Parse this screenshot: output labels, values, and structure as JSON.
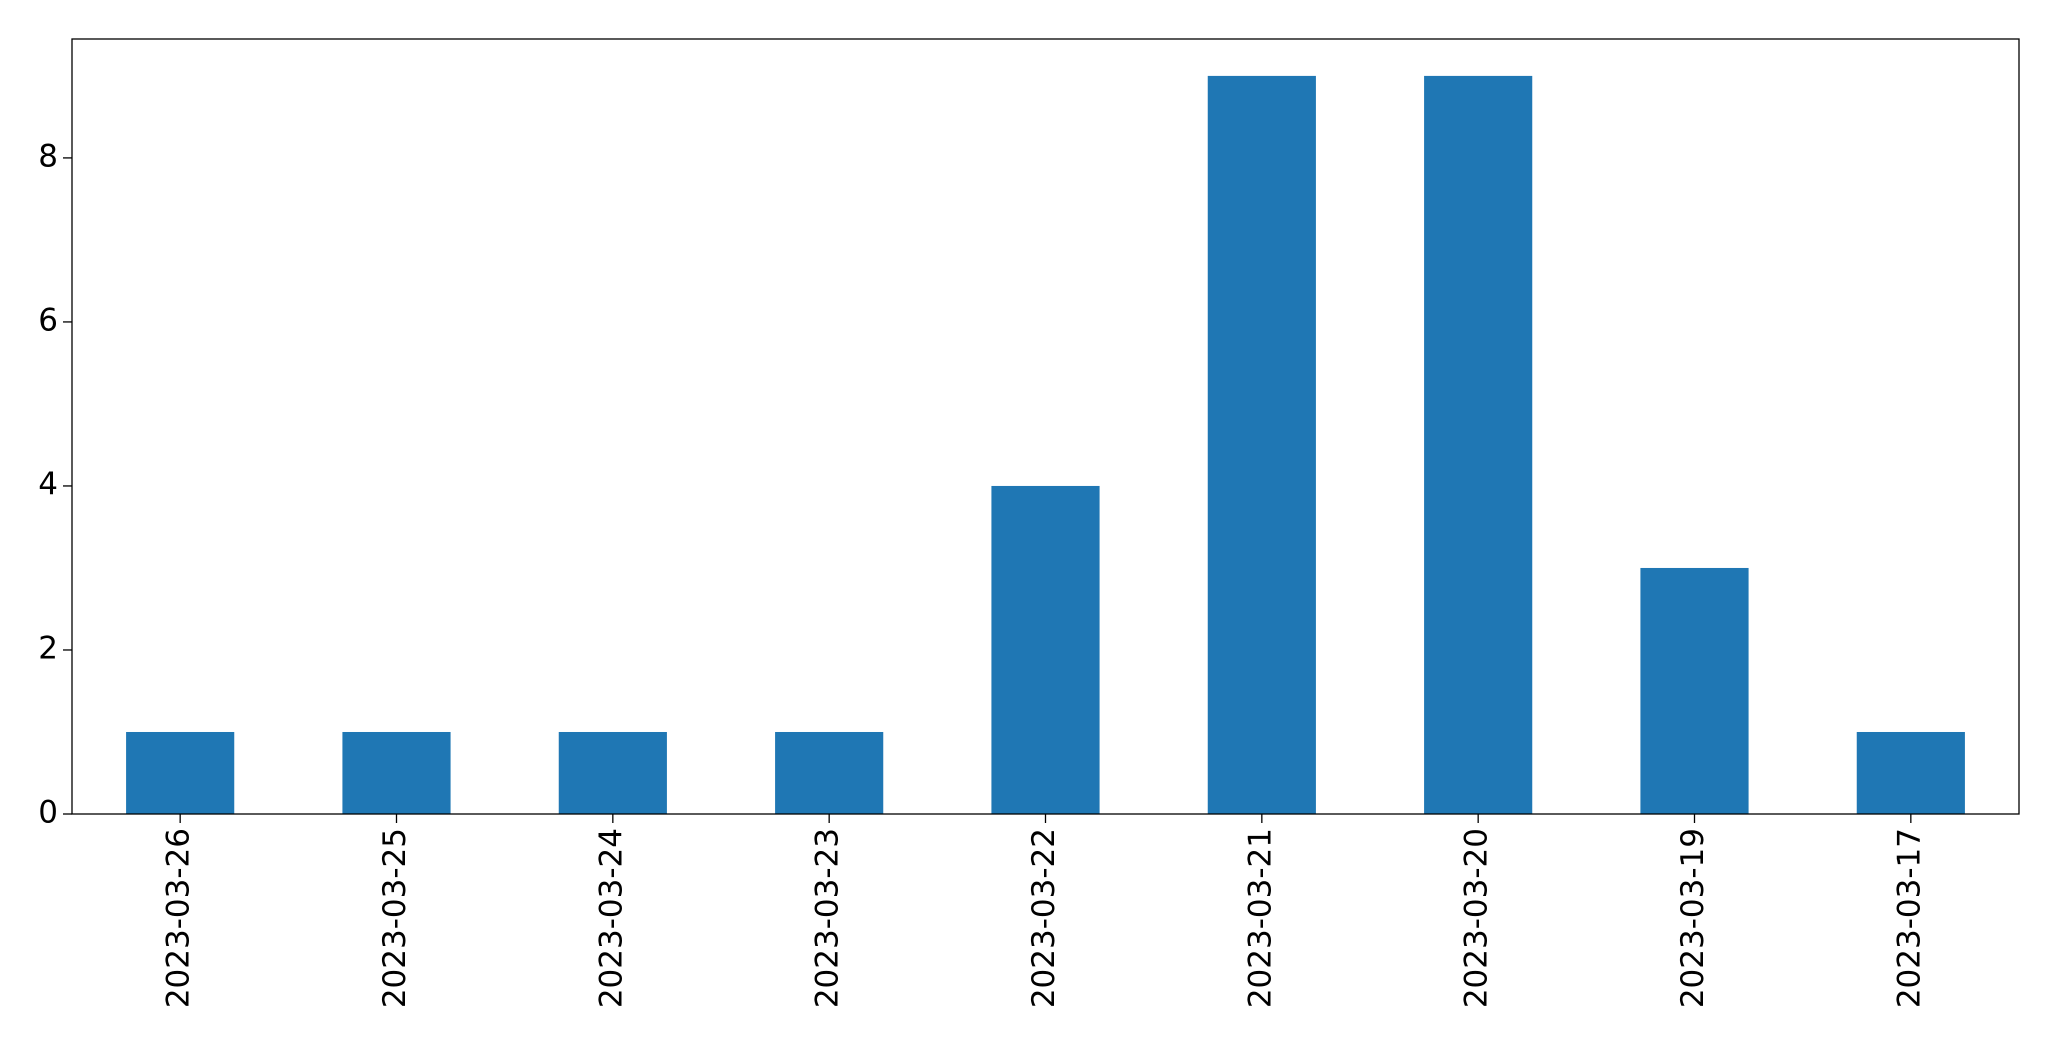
{
  "chart_data": {
    "type": "bar",
    "categories": [
      "2023-03-26",
      "2023-03-25",
      "2023-03-24",
      "2023-03-23",
      "2023-03-22",
      "2023-03-21",
      "2023-03-20",
      "2023-03-19",
      "2023-03-17"
    ],
    "values": [
      1,
      1,
      1,
      1,
      4,
      9,
      9,
      3,
      1
    ],
    "color": "#1f77b4",
    "ylim": [
      0,
      9.45
    ],
    "yticks": [
      0,
      2,
      4,
      6,
      8
    ],
    "grid": false
  }
}
